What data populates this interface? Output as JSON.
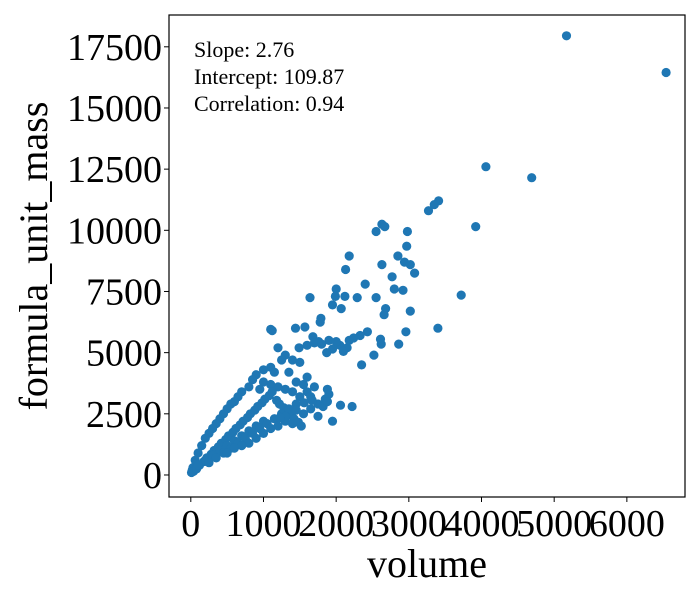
{
  "chart_data": {
    "type": "scatter",
    "xlabel": "volume",
    "ylabel": "formula_unit_mass",
    "xlim": [
      -300,
      6800
    ],
    "ylim": [
      -900,
      18800
    ],
    "xticks": [
      0,
      1000,
      2000,
      3000,
      4000,
      5000,
      6000
    ],
    "yticks": [
      0,
      2500,
      5000,
      7500,
      10000,
      12500,
      15000,
      17500
    ],
    "marker_color": "#1f77b4",
    "annotations": [
      "Slope: 2.76",
      "Intercept: 109.87",
      "Correlation: 0.94"
    ],
    "grid": false,
    "points": [
      [
        5170,
        17950
      ],
      [
        6540,
        16450
      ],
      [
        4060,
        12600
      ],
      [
        4690,
        12150
      ],
      [
        3410,
        11200
      ],
      [
        3350,
        11050
      ],
      [
        3270,
        10800
      ],
      [
        3920,
        10150
      ],
      [
        2630,
        10250
      ],
      [
        2670,
        10150
      ],
      [
        2550,
        9950
      ],
      [
        2980,
        9950
      ],
      [
        2970,
        9350
      ],
      [
        2180,
        8950
      ],
      [
        2130,
        8400
      ],
      [
        2850,
        8950
      ],
      [
        2940,
        8700
      ],
      [
        2630,
        8600
      ],
      [
        3020,
        8600
      ],
      [
        3080,
        8250
      ],
      [
        2770,
        8100
      ],
      [
        2800,
        7600
      ],
      [
        2920,
        7550
      ],
      [
        2400,
        7800
      ],
      [
        2000,
        7600
      ],
      [
        1640,
        7250
      ],
      [
        1990,
        7300
      ],
      [
        1950,
        6950
      ],
      [
        2070,
        6800
      ],
      [
        2120,
        7300
      ],
      [
        2290,
        7250
      ],
      [
        2550,
        7250
      ],
      [
        3720,
        7350
      ],
      [
        2680,
        6800
      ],
      [
        3020,
        6700
      ],
      [
        2660,
        6550
      ],
      [
        1790,
        6400
      ],
      [
        1440,
        6000
      ],
      [
        1570,
        6050
      ],
      [
        1780,
        6250
      ],
      [
        1100,
        5950
      ],
      [
        1120,
        5900
      ],
      [
        2430,
        5850
      ],
      [
        2610,
        5550
      ],
      [
        2620,
        5350
      ],
      [
        2330,
        5700
      ],
      [
        2960,
        5850
      ],
      [
        3400,
        6000
      ],
      [
        2860,
        5350
      ],
      [
        1680,
        5650
      ],
      [
        1760,
        5450
      ],
      [
        1900,
        5500
      ],
      [
        2050,
        5300
      ],
      [
        2150,
        5200
      ],
      [
        2180,
        5500
      ],
      [
        2240,
        5600
      ],
      [
        1600,
        5300
      ],
      [
        1700,
        5400
      ],
      [
        1800,
        5350
      ],
      [
        1950,
        5150
      ],
      [
        2000,
        5450
      ],
      [
        1870,
        5000
      ],
      [
        2100,
        5050
      ],
      [
        2350,
        4500
      ],
      [
        2520,
        4900
      ],
      [
        1490,
        5200
      ],
      [
        1200,
        5200
      ],
      [
        1300,
        4900
      ],
      [
        1400,
        4700
      ],
      [
        1500,
        4600
      ],
      [
        1250,
        4700
      ],
      [
        1100,
        4400
      ],
      [
        1000,
        4300
      ],
      [
        900,
        4100
      ],
      [
        850,
        3900
      ],
      [
        1150,
        4200
      ],
      [
        1350,
        4200
      ],
      [
        1450,
        3800
      ],
      [
        1550,
        3700
      ],
      [
        1600,
        3400
      ],
      [
        1650,
        3200
      ],
      [
        1500,
        3200
      ],
      [
        1400,
        3400
      ],
      [
        1300,
        3500
      ],
      [
        1200,
        3600
      ],
      [
        1100,
        3700
      ],
      [
        1000,
        3800
      ],
      [
        950,
        3500
      ],
      [
        800,
        3600
      ],
      [
        700,
        3400
      ],
      [
        650,
        3200
      ],
      [
        600,
        3000
      ],
      [
        550,
        2900
      ],
      [
        500,
        2700
      ],
      [
        450,
        2500
      ],
      [
        400,
        2300
      ],
      [
        350,
        2100
      ],
      [
        300,
        1900
      ],
      [
        250,
        1700
      ],
      [
        200,
        1500
      ],
      [
        150,
        1200
      ],
      [
        100,
        900
      ],
      [
        60,
        600
      ],
      [
        30,
        300
      ],
      [
        10,
        100
      ],
      [
        20,
        200
      ],
      [
        40,
        150
      ],
      [
        80,
        250
      ],
      [
        120,
        400
      ],
      [
        180,
        550
      ],
      [
        220,
        700
      ],
      [
        280,
        850
      ],
      [
        320,
        1000
      ],
      [
        380,
        1150
      ],
      [
        420,
        1300
      ],
      [
        480,
        1450
      ],
      [
        520,
        1600
      ],
      [
        580,
        1750
      ],
      [
        620,
        1900
      ],
      [
        680,
        2050
      ],
      [
        720,
        2200
      ],
      [
        780,
        2350
      ],
      [
        820,
        2500
      ],
      [
        880,
        2650
      ],
      [
        920,
        2800
      ],
      [
        980,
        2950
      ],
      [
        1020,
        3100
      ],
      [
        1080,
        3250
      ],
      [
        1120,
        3400
      ],
      [
        1180,
        3050
      ],
      [
        1220,
        2900
      ],
      [
        1280,
        2750
      ],
      [
        1320,
        2600
      ],
      [
        1380,
        2450
      ],
      [
        1420,
        2300
      ],
      [
        1480,
        2150
      ],
      [
        1520,
        2000
      ],
      [
        1000,
        2200
      ],
      [
        900,
        2000
      ],
      [
        800,
        1800
      ],
      [
        700,
        1600
      ],
      [
        600,
        1400
      ],
      [
        500,
        1200
      ],
      [
        400,
        1000
      ],
      [
        300,
        800
      ],
      [
        200,
        600
      ],
      [
        100,
        400
      ],
      [
        750,
        1500
      ],
      [
        850,
        1700
      ],
      [
        950,
        1900
      ],
      [
        1050,
        2100
      ],
      [
        1150,
        2300
      ],
      [
        1250,
        2500
      ],
      [
        1350,
        2700
      ],
      [
        1450,
        2900
      ],
      [
        650,
        1300
      ],
      [
        550,
        1100
      ],
      [
        450,
        900
      ],
      [
        350,
        700
      ],
      [
        250,
        500
      ],
      [
        1550,
        2500
      ],
      [
        1650,
        2700
      ],
      [
        1750,
        2900
      ],
      [
        1850,
        3100
      ],
      [
        1900,
        3300
      ],
      [
        1950,
        2200
      ],
      [
        1880,
        3500
      ],
      [
        1700,
        3600
      ],
      [
        1600,
        4000
      ],
      [
        1200,
        2000
      ],
      [
        1300,
        2200
      ],
      [
        1400,
        2100
      ],
      [
        1100,
        1900
      ],
      [
        1000,
        1700
      ],
      [
        900,
        1500
      ],
      [
        800,
        1300
      ],
      [
        700,
        1200
      ],
      [
        600,
        1100
      ],
      [
        500,
        900
      ],
      [
        1750,
        2400
      ],
      [
        1820,
        2800
      ],
      [
        2060,
        2850
      ],
      [
        2220,
        2800
      ],
      [
        1880,
        3000
      ],
      [
        1670,
        3050
      ],
      [
        1560,
        2950
      ],
      [
        1450,
        2650
      ],
      [
        1300,
        2400
      ],
      [
        1230,
        2350
      ]
    ]
  }
}
